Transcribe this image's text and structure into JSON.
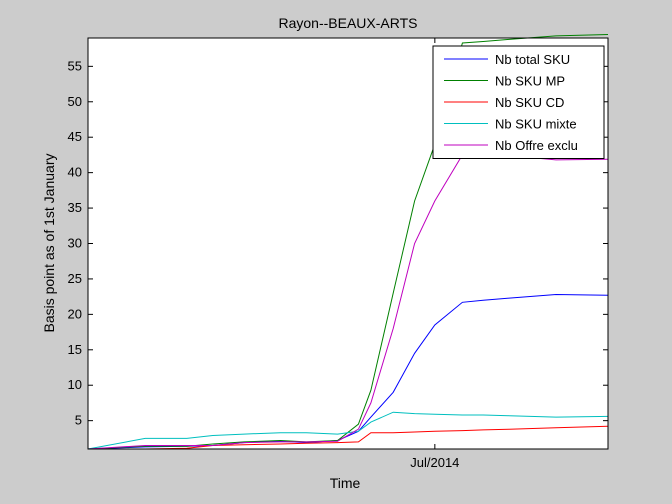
{
  "chart_data": {
    "type": "line",
    "title": "Rayon--BEAUX-ARTS",
    "xlabel": "Time",
    "ylabel": "Basis point as of 1st January",
    "xlim": [
      0,
      1
    ],
    "ylim": [
      1,
      59
    ],
    "yticks": [
      5,
      10,
      15,
      20,
      25,
      30,
      35,
      40,
      45,
      50,
      55
    ],
    "xticks": [
      {
        "x": 0.667,
        "label": "Jul/2014"
      }
    ],
    "grid": false,
    "legend_position": "top-right",
    "x": [
      0,
      0.11,
      0.19,
      0.24,
      0.3,
      0.37,
      0.42,
      0.48,
      0.52,
      0.544,
      0.587,
      0.628,
      0.667,
      0.72,
      0.76,
      0.81,
      0.9,
      1.0
    ],
    "series": [
      {
        "name": "Nb total SKU",
        "color": "#0000ff",
        "values": [
          1.0,
          1.3,
          1.4,
          1.5,
          1.9,
          2.1,
          1.9,
          2.2,
          3.5,
          5.5,
          9.0,
          14.5,
          18.5,
          21.7,
          22.0,
          22.3,
          22.8,
          22.7
        ]
      },
      {
        "name": "Nb SKU MP",
        "color": "#008000",
        "values": [
          1.0,
          1.4,
          1.4,
          1.7,
          2.0,
          2.2,
          2.0,
          2.2,
          4.5,
          9.3,
          23.0,
          36.0,
          44.0,
          58.3,
          58.5,
          58.8,
          59.3,
          59.5
        ]
      },
      {
        "name": "Nb SKU CD",
        "color": "#ff0000",
        "values": [
          1.0,
          1.0,
          1.1,
          1.5,
          1.6,
          1.7,
          1.8,
          1.9,
          2.0,
          3.3,
          3.3,
          3.4,
          3.5,
          3.6,
          3.7,
          3.8,
          4.0,
          4.2
        ]
      },
      {
        "name": "Nb SKU mixte",
        "color": "#00bfbf",
        "values": [
          1.0,
          2.5,
          2.5,
          2.9,
          3.1,
          3.3,
          3.3,
          3.1,
          3.5,
          4.8,
          6.2,
          6.0,
          5.9,
          5.8,
          5.8,
          5.7,
          5.5,
          5.6
        ]
      },
      {
        "name": "Nb Offre exclu",
        "color": "#bf00bf",
        "values": [
          1.0,
          1.5,
          1.5,
          1.5,
          1.9,
          2.0,
          2.0,
          2.1,
          3.8,
          7.5,
          18.0,
          30.0,
          36.0,
          42.5,
          42.7,
          42.4,
          41.8,
          41.9
        ]
      }
    ]
  }
}
